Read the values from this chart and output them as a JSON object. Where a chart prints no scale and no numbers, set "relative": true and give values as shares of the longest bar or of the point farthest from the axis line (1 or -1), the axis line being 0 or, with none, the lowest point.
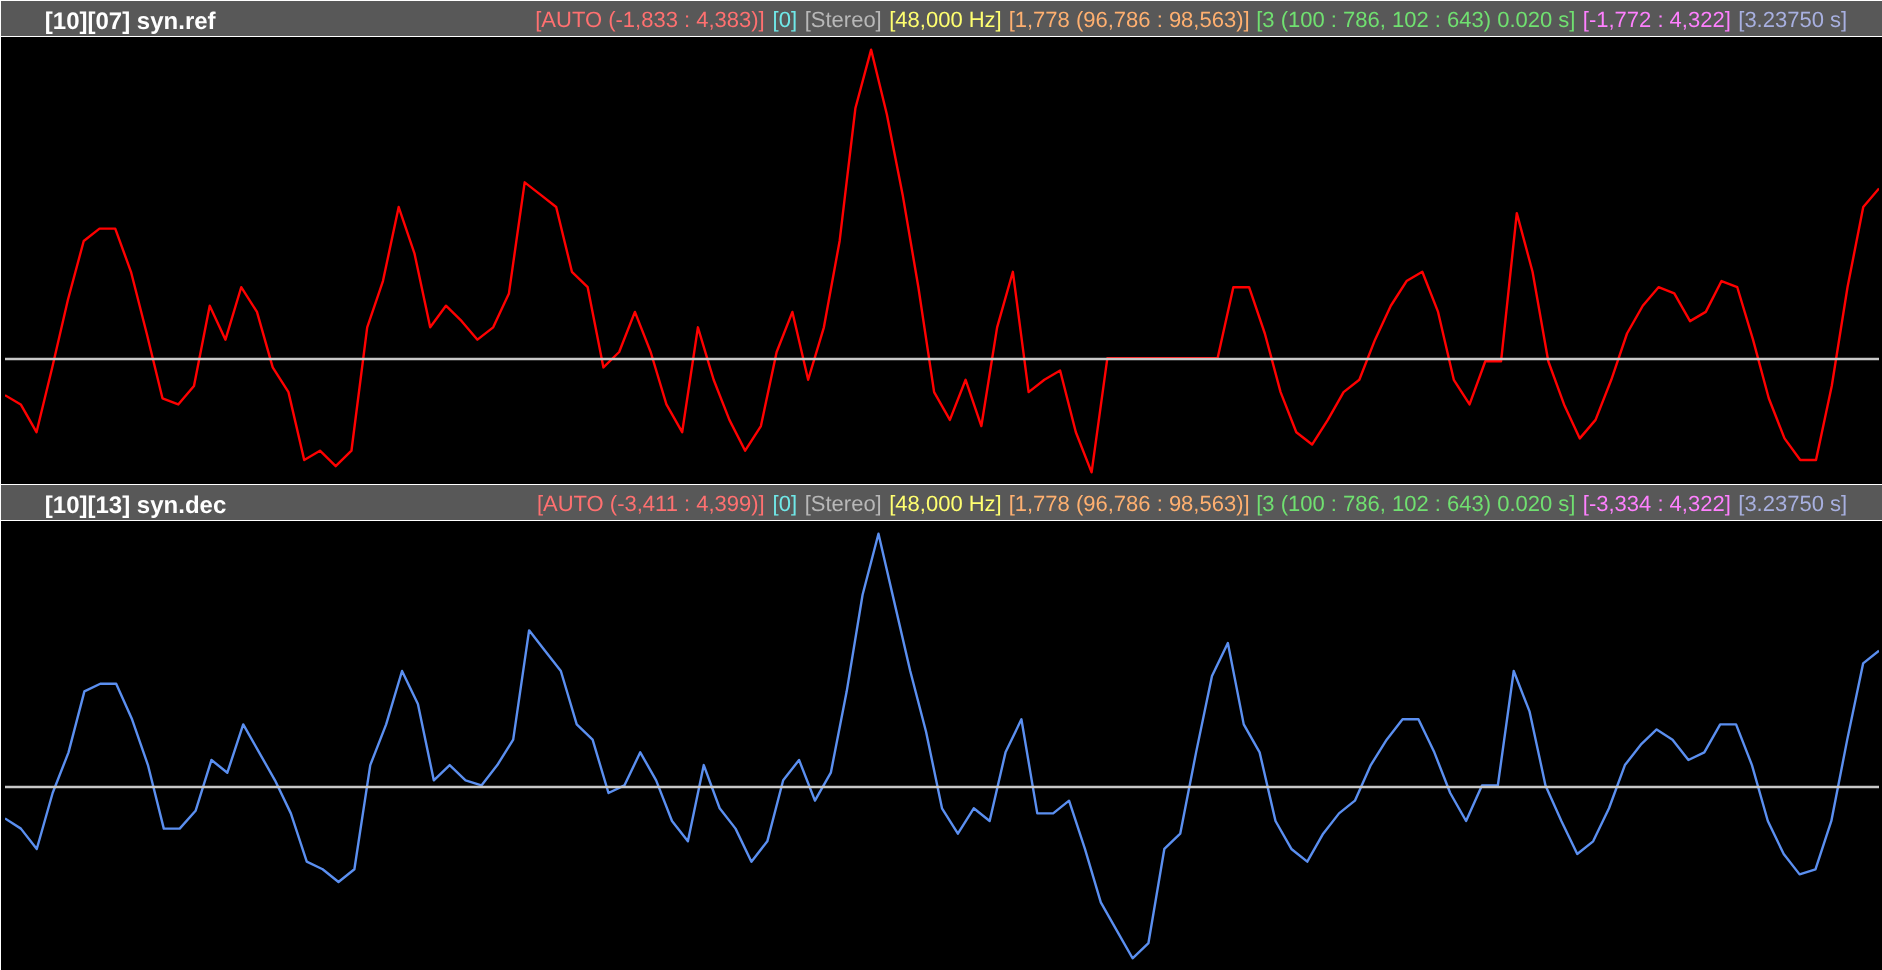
{
  "chart_data": [
    {
      "type": "line",
      "title": "[10][07] syn.ref",
      "relative": true,
      "annotations": [
        "[AUTO (-1,833 : 4,383)]",
        "[0]",
        "[Stereo]",
        "[48,000 Hz]",
        "[1,778 (96,786 : 98,563)]",
        "[3 (100 : 786, 102 : 643) 0.020 s]",
        "[-1,772 : 4,322]",
        "[3.23750 s]"
      ],
      "categories": [
        null,
        null,
        null,
        null,
        null,
        null,
        null,
        null,
        null,
        null,
        null,
        null,
        null,
        null,
        null,
        null,
        null,
        null,
        null,
        null,
        null,
        null,
        null,
        null,
        null,
        null,
        null,
        null,
        null,
        null,
        null,
        null,
        null,
        null,
        null,
        null,
        null,
        null,
        null,
        null,
        null,
        null,
        null,
        null,
        null,
        null,
        null,
        null,
        null,
        null,
        null,
        null,
        null,
        null,
        null,
        null,
        null,
        null,
        null,
        null,
        null,
        null,
        null,
        null,
        null,
        null,
        null,
        null,
        null,
        null,
        null,
        null,
        null,
        null,
        null,
        null,
        null,
        null,
        null,
        null,
        null,
        null,
        null,
        null,
        null,
        null,
        null,
        null,
        null,
        null,
        null,
        null,
        null,
        null,
        null,
        null,
        null,
        null,
        null,
        null,
        null,
        null,
        null,
        null,
        null,
        null,
        null,
        null,
        null,
        null,
        null,
        null,
        null,
        null,
        null,
        null,
        null,
        null,
        null,
        null
      ],
      "series": [
        {
          "color": "#ff0000",
          "values": [
            -0.12,
            -0.15,
            -0.24,
            -0.03,
            0.19,
            0.38,
            0.42,
            0.42,
            0.28,
            0.08,
            -0.13,
            -0.15,
            -0.09,
            0.17,
            0.06,
            0.23,
            0.15,
            -0.03,
            -0.11,
            -0.33,
            -0.3,
            -0.35,
            -0.3,
            0.1,
            0.25,
            0.49,
            0.34,
            0.1,
            0.17,
            0.12,
            0.06,
            0.1,
            0.21,
            0.57,
            0.53,
            0.49,
            0.28,
            0.23,
            -0.03,
            0.02,
            0.15,
            0.02,
            -0.15,
            -0.24,
            0.1,
            -0.07,
            -0.2,
            -0.3,
            -0.22,
            0.02,
            0.15,
            -0.07,
            0.1,
            0.38,
            0.81,
            1,
            0.79,
            0.53,
            0.23,
            -0.11,
            -0.2,
            -0.07,
            -0.22,
            0.1,
            0.28,
            -0.11,
            -0.07,
            -0.04,
            -0.24,
            -0.37,
            0,
            0,
            0,
            0,
            0,
            0,
            0,
            0,
            0.23,
            0.23,
            0.08,
            -0.11,
            -0.24,
            -0.28,
            -0.2,
            -0.11,
            -0.07,
            0.06,
            0.17,
            0.25,
            0.28,
            0.15,
            -0.07,
            -0.15,
            -0.01,
            -0.01,
            0.47,
            0.28,
            -0.01,
            -0.15,
            -0.26,
            -0.2,
            -0.07,
            0.08,
            0.17,
            0.23,
            0.21,
            0.12,
            0.15,
            0.25,
            0.23,
            0.06,
            -0.13,
            -0.26,
            -0.33,
            -0.33,
            -0.09,
            0.23,
            0.49,
            0.55
          ]
        }
      ]
    },
    {
      "type": "line",
      "title": "[10][13] syn.dec",
      "relative": true,
      "annotations": [
        "[AUTO (-3,411 : 4,399)]",
        "[0]",
        "[Stereo]",
        "[48,000 Hz]",
        "[1,778 (96,786 : 98,563)]",
        "[3 (100 : 786, 102 : 643) 0.020 s]",
        "[-3,334 : 4,322]",
        "[3.23750 s]"
      ],
      "categories": [
        null,
        null,
        null,
        null,
        null,
        null,
        null,
        null,
        null,
        null,
        null,
        null,
        null,
        null,
        null,
        null,
        null,
        null,
        null,
        null,
        null,
        null,
        null,
        null,
        null,
        null,
        null,
        null,
        null,
        null,
        null,
        null,
        null,
        null,
        null,
        null,
        null,
        null,
        null,
        null,
        null,
        null,
        null,
        null,
        null,
        null,
        null,
        null,
        null,
        null,
        null,
        null,
        null,
        null,
        null,
        null,
        null,
        null,
        null,
        null,
        null,
        null,
        null,
        null,
        null,
        null,
        null,
        null,
        null,
        null,
        null,
        null,
        null,
        null,
        null,
        null,
        null,
        null,
        null,
        null,
        null,
        null,
        null,
        null,
        null,
        null,
        null,
        null,
        null,
        null,
        null,
        null,
        null,
        null,
        null,
        null,
        null,
        null,
        null,
        null,
        null,
        null,
        null,
        null,
        null,
        null,
        null,
        null,
        null,
        null,
        null,
        null,
        null,
        null,
        null,
        null,
        null,
        null,
        null
      ],
      "series": [
        {
          "color": "#5b8ff0",
          "values": [
            -0.12,
            -0.16,
            -0.24,
            -0.02,
            0.14,
            0.38,
            0.41,
            0.41,
            0.27,
            0.09,
            -0.16,
            -0.16,
            -0.09,
            0.11,
            0.06,
            0.25,
            0.14,
            0.03,
            -0.1,
            -0.29,
            -0.32,
            -0.37,
            -0.32,
            0.09,
            0.25,
            0.46,
            0.33,
            0.03,
            0.09,
            0.03,
            0.01,
            0.09,
            0.19,
            0.62,
            0.54,
            0.46,
            0.25,
            0.19,
            -0.02,
            0.01,
            0.14,
            0.03,
            -0.13,
            -0.21,
            0.09,
            -0.08,
            -0.16,
            -0.29,
            -0.21,
            0.03,
            0.11,
            -0.05,
            0.06,
            0.38,
            0.76,
            1,
            0.73,
            0.46,
            0.22,
            -0.08,
            -0.18,
            -0.08,
            -0.13,
            0.14,
            0.27,
            -0.1,
            -0.1,
            -0.05,
            -0.24,
            -0.45,
            -0.56,
            -0.67,
            -0.61,
            -0.24,
            -0.18,
            0.14,
            0.44,
            0.57,
            0.25,
            0.14,
            -0.13,
            -0.24,
            -0.29,
            -0.18,
            -0.1,
            -0.05,
            0.09,
            0.19,
            0.27,
            0.27,
            0.14,
            -0.02,
            -0.13,
            0.01,
            0.01,
            0.46,
            0.3,
            0.01,
            -0.13,
            -0.26,
            -0.21,
            -0.08,
            0.09,
            0.17,
            0.23,
            0.19,
            0.11,
            0.14,
            0.25,
            0.25,
            0.09,
            -0.13,
            -0.26,
            -0.34,
            -0.32,
            -0.13,
            0.19,
            0.49,
            0.54
          ]
        }
      ]
    }
  ]
}
